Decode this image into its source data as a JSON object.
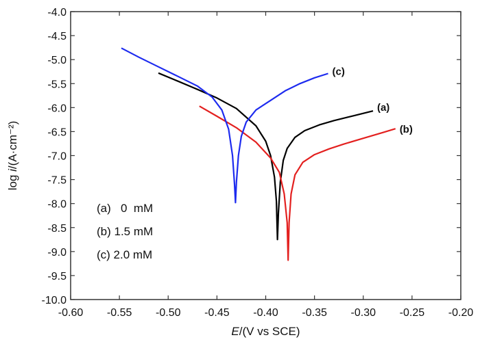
{
  "chart_data": {
    "type": "line",
    "xlabel_italic": "E",
    "xlabel_rest": "/(V vs SCE)",
    "ylabel_pre": "log ",
    "ylabel_italic": "i",
    "ylabel_rest": "/(A·cm⁻²)",
    "xlim": [
      -0.6,
      -0.2
    ],
    "ylim": [
      -10.0,
      -4.0
    ],
    "x_ticks": [
      -0.6,
      -0.55,
      -0.5,
      -0.45,
      -0.4,
      -0.35,
      -0.3,
      -0.25,
      -0.2
    ],
    "x_tick_labels": [
      "-0.60",
      "-0.55",
      "-0.50",
      "-0.45",
      "-0.40",
      "-0.35",
      "-0.30",
      "-0.25",
      "-0.20"
    ],
    "y_ticks": [
      -4.0,
      -4.5,
      -5.0,
      -5.5,
      -6.0,
      -6.5,
      -7.0,
      -7.5,
      -8.0,
      -8.5,
      -9.0,
      -9.5,
      -10.0
    ],
    "y_tick_labels": [
      "-4.0",
      "-4.5",
      "-5.0",
      "-5.5",
      "-6.0",
      "-6.5",
      "-7.0",
      "-7.5",
      "-8.0",
      "-8.5",
      "-9.0",
      "-9.5",
      "-10.0"
    ],
    "grid": false,
    "series": [
      {
        "name": "(a)",
        "color": "#000000",
        "points": [
          [
            -0.51,
            -5.28
          ],
          [
            -0.49,
            -5.45
          ],
          [
            -0.47,
            -5.62
          ],
          [
            -0.45,
            -5.8
          ],
          [
            -0.43,
            -6.02
          ],
          [
            -0.41,
            -6.38
          ],
          [
            -0.4,
            -6.7
          ],
          [
            -0.395,
            -7.0
          ],
          [
            -0.391,
            -7.45
          ],
          [
            -0.389,
            -7.95
          ],
          [
            -0.388,
            -8.75
          ],
          [
            -0.387,
            -8.2
          ],
          [
            -0.385,
            -7.55
          ],
          [
            -0.382,
            -7.1
          ],
          [
            -0.378,
            -6.85
          ],
          [
            -0.37,
            -6.62
          ],
          [
            -0.36,
            -6.48
          ],
          [
            -0.345,
            -6.36
          ],
          [
            -0.33,
            -6.27
          ],
          [
            -0.31,
            -6.17
          ],
          [
            -0.29,
            -6.07
          ]
        ]
      },
      {
        "name": "(b)",
        "color": "#e3201f",
        "points": [
          [
            -0.468,
            -5.97
          ],
          [
            -0.45,
            -6.18
          ],
          [
            -0.43,
            -6.42
          ],
          [
            -0.41,
            -6.72
          ],
          [
            -0.395,
            -7.05
          ],
          [
            -0.386,
            -7.35
          ],
          [
            -0.381,
            -7.8
          ],
          [
            -0.378,
            -8.4
          ],
          [
            -0.377,
            -9.18
          ],
          [
            -0.376,
            -8.4
          ],
          [
            -0.374,
            -7.8
          ],
          [
            -0.37,
            -7.4
          ],
          [
            -0.362,
            -7.14
          ],
          [
            -0.35,
            -6.98
          ],
          [
            -0.335,
            -6.86
          ],
          [
            -0.32,
            -6.76
          ],
          [
            -0.3,
            -6.64
          ],
          [
            -0.28,
            -6.52
          ],
          [
            -0.267,
            -6.44
          ]
        ]
      },
      {
        "name": "(c)",
        "color": "#1d2bef",
        "points": [
          [
            -0.548,
            -4.76
          ],
          [
            -0.53,
            -4.95
          ],
          [
            -0.51,
            -5.15
          ],
          [
            -0.49,
            -5.35
          ],
          [
            -0.47,
            -5.55
          ],
          [
            -0.455,
            -5.78
          ],
          [
            -0.445,
            -6.05
          ],
          [
            -0.438,
            -6.45
          ],
          [
            -0.434,
            -7.0
          ],
          [
            -0.432,
            -7.6
          ],
          [
            -0.431,
            -7.98
          ],
          [
            -0.43,
            -7.55
          ],
          [
            -0.428,
            -7.0
          ],
          [
            -0.425,
            -6.6
          ],
          [
            -0.42,
            -6.3
          ],
          [
            -0.41,
            -6.05
          ],
          [
            -0.395,
            -5.85
          ],
          [
            -0.38,
            -5.65
          ],
          [
            -0.365,
            -5.5
          ],
          [
            -0.35,
            -5.38
          ],
          [
            -0.336,
            -5.29
          ]
        ]
      }
    ],
    "legend": [
      "(a)   0  mM",
      "(b) 1.5 mM",
      "(c) 2.0 mM"
    ],
    "legend_position": "bottom-left"
  }
}
